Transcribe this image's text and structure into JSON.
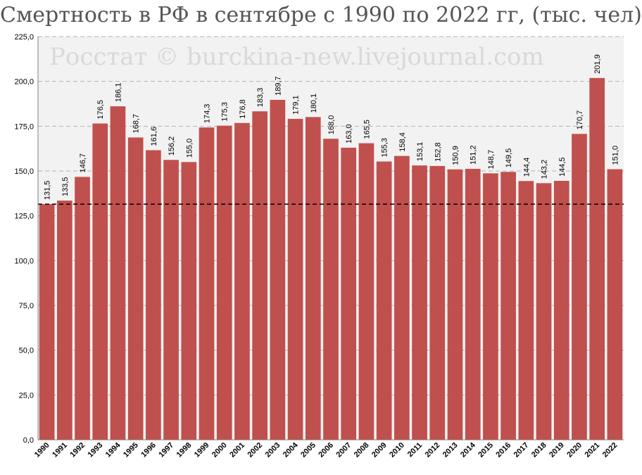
{
  "chart_data": {
    "type": "bar",
    "title": "Смертность в РФ в сентябре с 1990 по 2022 гг, (тыс. чел)",
    "watermark": "Росстат © burckina-new.livejournal.com",
    "categories": [
      "1990",
      "1991",
      "1992",
      "1993",
      "1994",
      "1995",
      "1996",
      "1997",
      "1998",
      "1999",
      "2000",
      "2001",
      "2002",
      "2003",
      "2004",
      "2005",
      "2006",
      "2007",
      "2008",
      "2009",
      "2010",
      "2011",
      "2012",
      "2013",
      "2014",
      "2015",
      "2016",
      "2017",
      "2018",
      "2019",
      "2020",
      "2021",
      "2022"
    ],
    "values": [
      131.5,
      133.5,
      146.7,
      176.5,
      186.1,
      168.7,
      161.6,
      156.2,
      155.0,
      174.3,
      175.3,
      176.8,
      183.3,
      189.7,
      179.1,
      180.1,
      168.0,
      163.0,
      165.5,
      155.3,
      158.4,
      153.1,
      152.8,
      150.9,
      151.2,
      148.7,
      149.5,
      144.4,
      143.2,
      144.5,
      170.7,
      201.9,
      151.0
    ],
    "data_labels": [
      "131,5",
      "133,5",
      "146,7",
      "176,5",
      "186,1",
      "168,7",
      "161,6",
      "156,2",
      "155,0",
      "174,3",
      "175,3",
      "176,8",
      "183,3",
      "189,7",
      "179,1",
      "180,1",
      "168,0",
      "163,0",
      "165,5",
      "155,3",
      "158,4",
      "153,1",
      "152,8",
      "150,9",
      "151,2",
      "148,7",
      "149,5",
      "144,4",
      "143,2",
      "144,5",
      "170,7",
      "201,9",
      "151,0"
    ],
    "yticks": [
      0,
      25,
      50,
      75,
      100,
      125,
      150,
      175,
      200,
      225
    ],
    "ytick_labels": [
      "0,0",
      "25,0",
      "50,0",
      "75,0",
      "100,0",
      "125,0",
      "150,0",
      "175,0",
      "200,0",
      "225,0"
    ],
    "ylim": [
      0,
      225
    ],
    "reference_line": 131.5,
    "grid": true,
    "legend": "none",
    "colors": {
      "bar": "#c0504d",
      "plot_background": "#f2f2f2",
      "grid": "#b3b3b3",
      "reference_line": "#000000",
      "title": "#555555",
      "watermark": "#d9d9d9"
    }
  }
}
